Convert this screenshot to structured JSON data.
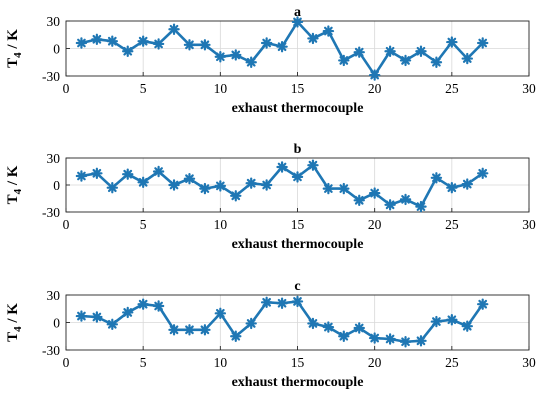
{
  "chart_data": [
    {
      "type": "line",
      "title": "a",
      "xlabel": "exhaust thermocouple",
      "ylabel": "T",
      "ylabel_sub": "4",
      "ylabel_unit": "/ K",
      "xlim": [
        0,
        30
      ],
      "ylim": [
        -30,
        30
      ],
      "xticks": [
        "0",
        "5",
        "10",
        "15",
        "20",
        "25",
        "30"
      ],
      "yticks": [
        "30",
        "0",
        "-30"
      ],
      "grid": true,
      "color": "#1f77b4",
      "marker": "asterisk",
      "x": [
        1,
        2,
        3,
        4,
        5,
        6,
        7,
        8,
        9,
        10,
        11,
        12,
        13,
        14,
        15,
        16,
        17,
        18,
        19,
        20,
        21,
        22,
        23,
        24,
        25,
        26,
        27
      ],
      "values": [
        6,
        10,
        8,
        -3,
        8,
        5,
        21,
        4,
        4,
        -9,
        -7,
        -15,
        6,
        2,
        29,
        11,
        19,
        -13,
        -4,
        -29,
        -3,
        -13,
        -3,
        -15,
        7,
        -11,
        6
      ]
    },
    {
      "type": "line",
      "title": "b",
      "xlabel": "exhaust thermocouple",
      "ylabel": "T",
      "ylabel_sub": "4",
      "ylabel_unit": "/ K",
      "xlim": [
        0,
        30
      ],
      "ylim": [
        -30,
        30
      ],
      "xticks": [
        "0",
        "5",
        "10",
        "15",
        "20",
        "25",
        "30"
      ],
      "yticks": [
        "30",
        "0",
        "-30"
      ],
      "grid": true,
      "color": "#1f77b4",
      "marker": "asterisk",
      "x": [
        1,
        2,
        3,
        4,
        5,
        6,
        7,
        8,
        9,
        10,
        11,
        12,
        13,
        14,
        15,
        16,
        17,
        18,
        19,
        20,
        21,
        22,
        23,
        24,
        25,
        26,
        27
      ],
      "values": [
        10,
        13,
        -3,
        12,
        3,
        15,
        0,
        7,
        -4,
        -1,
        -12,
        2,
        0,
        20,
        9,
        22,
        -4,
        -4,
        -17,
        -9,
        -22,
        -16,
        -24,
        8,
        -3,
        1,
        13
      ]
    },
    {
      "type": "line",
      "title": "c",
      "xlabel": "exhaust thermocouple",
      "ylabel": "T",
      "ylabel_sub": "4",
      "ylabel_unit": "/ K",
      "xlim": [
        0,
        30
      ],
      "ylim": [
        -30,
        30
      ],
      "xticks": [
        "0",
        "5",
        "10",
        "15",
        "20",
        "25",
        "30"
      ],
      "yticks": [
        "30",
        "0",
        "-30"
      ],
      "grid": true,
      "color": "#1f77b4",
      "marker": "asterisk",
      "x": [
        1,
        2,
        3,
        4,
        5,
        6,
        7,
        8,
        9,
        10,
        11,
        12,
        13,
        14,
        15,
        16,
        17,
        18,
        19,
        20,
        21,
        22,
        23,
        24,
        25,
        26,
        27
      ],
      "values": [
        7,
        6,
        -2,
        11,
        20,
        18,
        -8,
        -8,
        -8,
        10,
        -15,
        -1,
        22,
        21,
        23,
        -1,
        -5,
        -15,
        -6,
        -17,
        -18,
        -21,
        -20,
        1,
        3,
        -4,
        20
      ]
    }
  ]
}
